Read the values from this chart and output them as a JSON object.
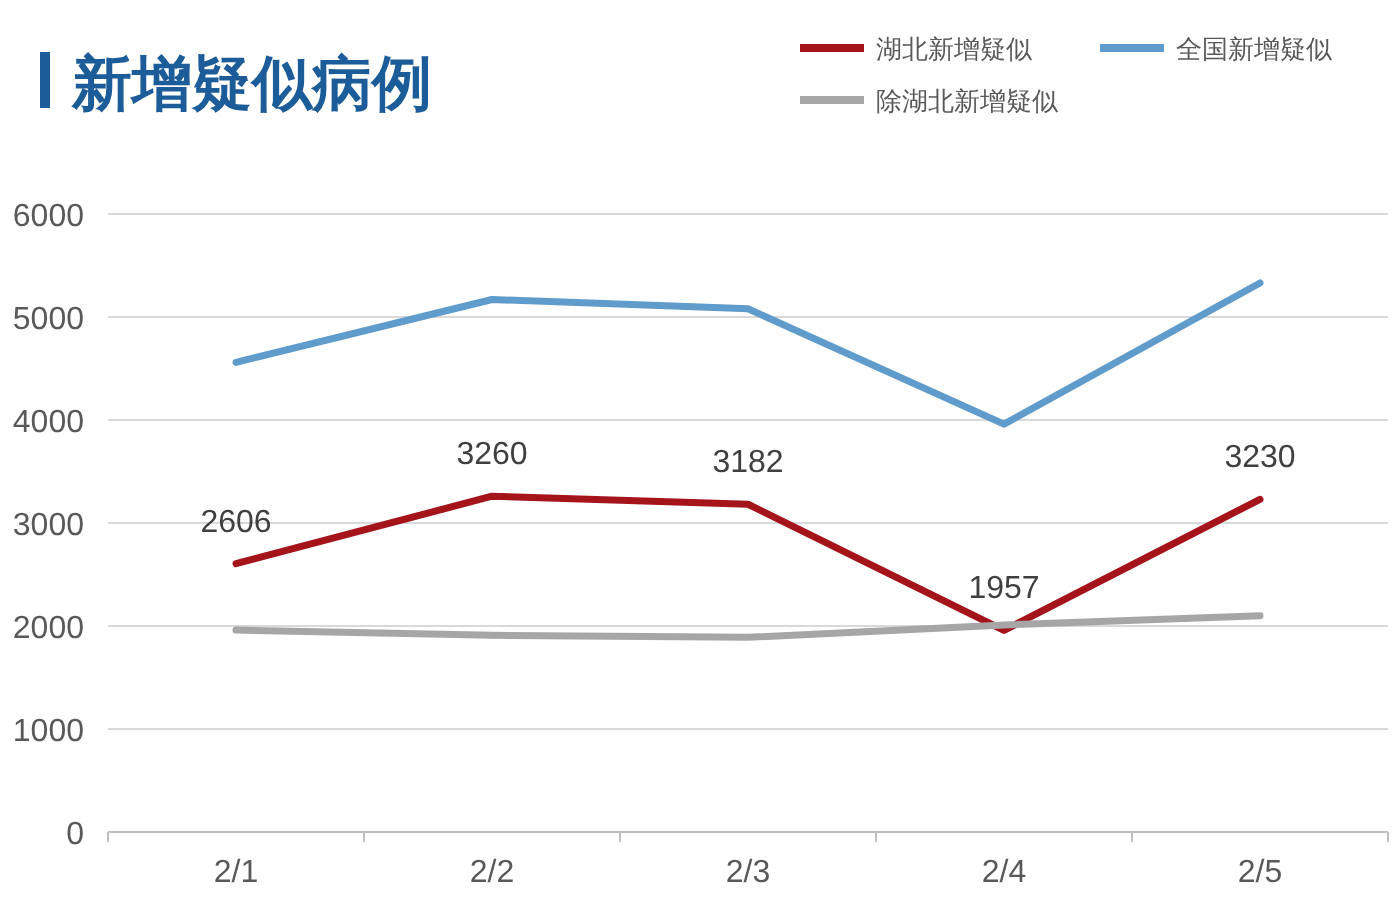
{
  "chart_data": {
    "type": "line",
    "title": "新增疑似病例",
    "categories": [
      "2/1",
      "2/2",
      "2/3",
      "2/4",
      "2/5"
    ],
    "series": [
      {
        "name": "湖北新增疑似",
        "color": "#a5141b",
        "values": [
          2606,
          3260,
          3182,
          1957,
          3230
        ],
        "value_labels": [
          "2606",
          "3260",
          "3182",
          "1957",
          "3230"
        ]
      },
      {
        "name": "全国新增疑似",
        "color": "#5f9ccb",
        "values": [
          4560,
          5170,
          5080,
          3960,
          5330
        ]
      },
      {
        "name": "除湖北新增疑似",
        "color": "#a6a6a6",
        "values": [
          1960,
          1910,
          1890,
          2010,
          2100
        ]
      }
    ],
    "ylim": [
      0,
      6000
    ],
    "yticks": [
      0,
      1000,
      2000,
      3000,
      4000,
      5000,
      6000
    ],
    "grid": "y",
    "legend": "top right",
    "marker": "none",
    "line_style": "solid"
  }
}
